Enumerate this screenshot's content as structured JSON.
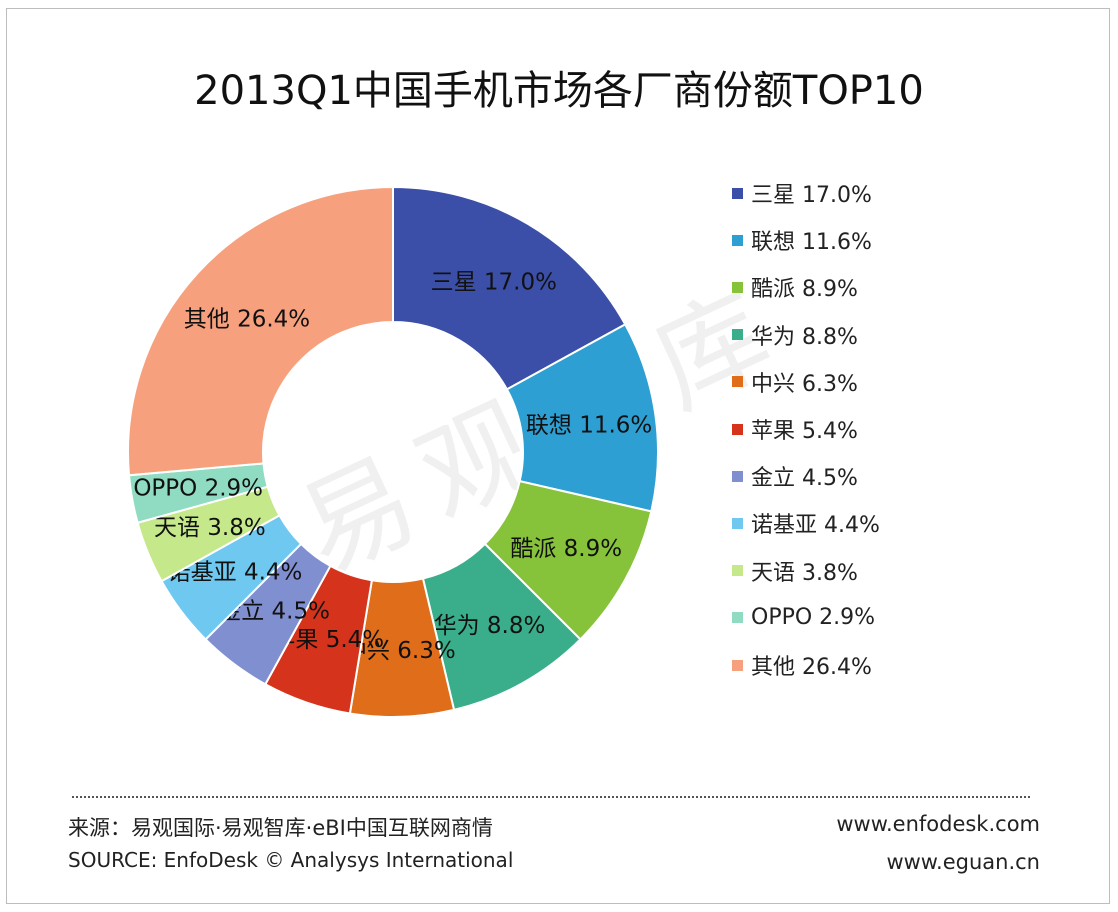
{
  "chart_data": {
    "type": "pie",
    "subtype": "donut",
    "title": "2013Q1中国手机市场各厂商份额TOP10",
    "legend_position": "right",
    "slices": [
      {
        "label": "三星",
        "value": 17.0,
        "display": "17.0%",
        "legend_value": "17.0%",
        "color": "#3B4FA8"
      },
      {
        "label": "联想",
        "value": 11.6,
        "display": "11.6%",
        "legend_value": "11.6%",
        "color": "#2E9FD2"
      },
      {
        "label": "酷派",
        "value": 8.9,
        "display": "8.9%",
        "legend_value": "8.9%",
        "color": "#86C33A"
      },
      {
        "label": "华为",
        "value": 8.8,
        "display": "8.8%",
        "legend_value": "8.8%",
        "color": "#3AAE8A"
      },
      {
        "label": "中兴",
        "value": 6.3,
        "display": "6.3%",
        "legend_value": "6.3%",
        "color": "#E06D1A"
      },
      {
        "label": "苹果",
        "value": 5.4,
        "display": "5.4%",
        "legend_value": "5.4%",
        "color": "#D6331C"
      },
      {
        "label": "金立",
        "value": 4.5,
        "display": "4.5%",
        "legend_value": "4.5%",
        "color": "#7F8FD0"
      },
      {
        "label": "诺基亚",
        "value": 4.4,
        "display": "4.4%",
        "legend_value": "4.4%",
        "color": "#6EC8F0"
      },
      {
        "label": "天语",
        "value": 3.8,
        "display": "3.8%",
        "legend_value": "3.8%",
        "color": "#C5E88A"
      },
      {
        "label": "OPPO",
        "value": 2.9,
        "display": "2.9%",
        "legend_value": "2.9%",
        "color": "#8FDCC2"
      },
      {
        "label": "其他",
        "value": 26.4,
        "display": "26.4%",
        "legend_value": "26.4%",
        "color": "#F7A07E"
      }
    ]
  },
  "watermark": "易观智库",
  "footer": {
    "source_cn": "来源：易观国际·易观智库·eBI中国互联网商情",
    "source_en": "SOURCE: EnfoDesk © Analysys International",
    "url1": "www.enfodesk.com",
    "url2": "www.eguan.cn"
  }
}
